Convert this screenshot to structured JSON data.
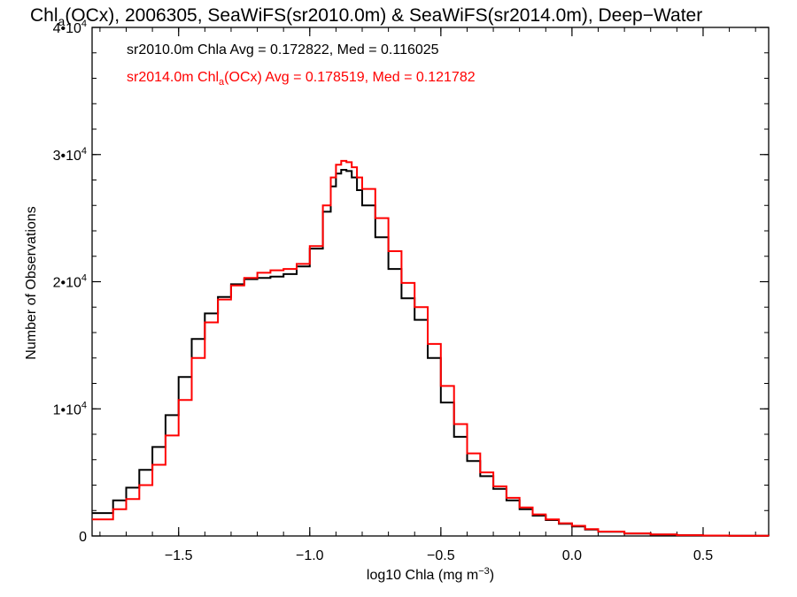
{
  "chart_data": {
    "type": "line",
    "step": true,
    "title": {
      "prefix": "Chl",
      "sub": "a",
      "rest": "(OCx), 2006305, SeaWiFS(sr2010.0m) & SeaWiFS(sr2014.0m), Deep−Water"
    },
    "xlabel": {
      "main": "log10 Chla (mg m",
      "sup": "−3",
      "close": ")"
    },
    "ylabel": "Number of Observations",
    "xlim": [
      -1.83,
      0.75
    ],
    "ylim": [
      0,
      40000
    ],
    "xticks": [
      {
        "value": -1.5,
        "label": "−1.5"
      },
      {
        "value": -1.0,
        "label": "−1.0"
      },
      {
        "value": -0.5,
        "label": "−0.5"
      },
      {
        "value": 0.0,
        "label": "0.0"
      },
      {
        "value": 0.5,
        "label": "0.5"
      }
    ],
    "x_minor_step": 0.1,
    "yticks": [
      {
        "value": 0,
        "label": "0",
        "sup": ""
      },
      {
        "value": 10000,
        "label": "1•10",
        "sup": "4"
      },
      {
        "value": 20000,
        "label": "2•10",
        "sup": "4"
      },
      {
        "value": 30000,
        "label": "3•10",
        "sup": "4"
      },
      {
        "value": 40000,
        "label": "4•10",
        "sup": "4"
      }
    ],
    "y_minor_step": 2000,
    "legend": [
      {
        "text": "sr2010.0m Chla Avg = 0.172822, Med = 0.116025",
        "color": "#000000"
      },
      {
        "pre": "sr2014.0m Chl",
        "sub": "a",
        "post": "(OCx) Avg = 0.178519, Med = 0.121782",
        "color": "#ff0000"
      }
    ],
    "series": [
      {
        "color": "#000000",
        "x": [
          -1.83,
          -1.75,
          -1.7,
          -1.65,
          -1.6,
          -1.55,
          -1.5,
          -1.45,
          -1.4,
          -1.35,
          -1.3,
          -1.25,
          -1.2,
          -1.15,
          -1.1,
          -1.05,
          -1.0,
          -0.95,
          -0.92,
          -0.9,
          -0.88,
          -0.86,
          -0.84,
          -0.82,
          -0.8,
          -0.75,
          -0.7,
          -0.65,
          -0.6,
          -0.55,
          -0.5,
          -0.45,
          -0.4,
          -0.35,
          -0.3,
          -0.25,
          -0.2,
          -0.15,
          -0.1,
          -0.05,
          0.0,
          0.05,
          0.1,
          0.2,
          0.3,
          0.4,
          0.5,
          0.6,
          0.75
        ],
        "y": [
          1800,
          2800,
          3800,
          5200,
          7000,
          9500,
          12500,
          15500,
          17500,
          18800,
          19800,
          20200,
          20300,
          20400,
          20600,
          21200,
          22600,
          25500,
          27500,
          28500,
          28800,
          28700,
          28200,
          27200,
          26000,
          23500,
          21000,
          18700,
          17000,
          14000,
          10500,
          7800,
          5900,
          4700,
          3700,
          2800,
          2100,
          1600,
          1250,
          950,
          750,
          500,
          330,
          190,
          110,
          60,
          30,
          15,
          5
        ]
      },
      {
        "color": "#ff0000",
        "x": [
          -1.83,
          -1.75,
          -1.7,
          -1.65,
          -1.6,
          -1.55,
          -1.5,
          -1.45,
          -1.4,
          -1.35,
          -1.3,
          -1.25,
          -1.2,
          -1.15,
          -1.1,
          -1.05,
          -1.0,
          -0.95,
          -0.92,
          -0.9,
          -0.88,
          -0.86,
          -0.84,
          -0.82,
          -0.8,
          -0.75,
          -0.7,
          -0.65,
          -0.6,
          -0.55,
          -0.5,
          -0.45,
          -0.4,
          -0.35,
          -0.3,
          -0.25,
          -0.2,
          -0.15,
          -0.1,
          -0.05,
          0.0,
          0.05,
          0.1,
          0.2,
          0.3,
          0.4,
          0.5,
          0.6,
          0.75
        ],
        "y": [
          1300,
          2100,
          2900,
          4000,
          5600,
          7900,
          10700,
          14000,
          16800,
          18600,
          19700,
          20300,
          20700,
          20900,
          21000,
          21400,
          22800,
          26000,
          28200,
          29200,
          29500,
          29400,
          29000,
          28200,
          27300,
          25000,
          22400,
          19900,
          18000,
          15100,
          11800,
          8800,
          6500,
          5000,
          3900,
          3000,
          2250,
          1700,
          1300,
          1000,
          800,
          540,
          350,
          200,
          115,
          65,
          32,
          16,
          5
        ]
      }
    ]
  }
}
